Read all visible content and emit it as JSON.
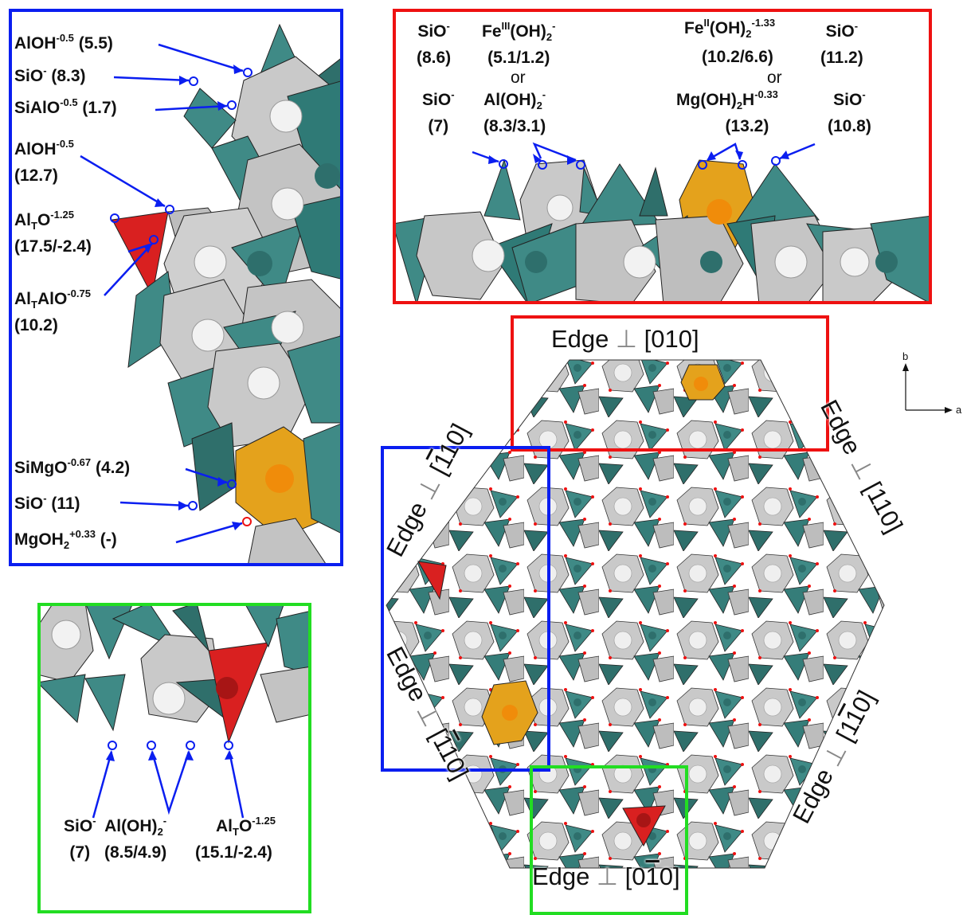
{
  "colors": {
    "blue": "#0a1ef0",
    "red": "#ee1111",
    "green": "#22dd22",
    "tetra": "#3f8a86",
    "octa": "#c7c7c7",
    "mg": "#e4a21c",
    "alt": "#d92020"
  },
  "blue_panel": {
    "labels": [
      {
        "base": "AlOH",
        "sup": "-0.5",
        "tail": " (5.5)"
      },
      {
        "base": "SiO",
        "sup": "-",
        "tail": " (8.3)"
      },
      {
        "base": "SiAlO",
        "sup": "-0.5",
        "tail": " (1.7)"
      },
      {
        "base": "AlOH",
        "sup": "-0.5",
        "tail": "",
        "line2": "(12.7)"
      },
      {
        "pre": "Al",
        "sub": "T",
        "base": "O",
        "sup": "-1.25",
        "tail": "",
        "line2": "(17.5/-2.4)"
      },
      {
        "pre": "Al",
        "sub": "T",
        "base": "AlO",
        "sup": "-0.75",
        "tail": "",
        "line2": "(10.2)"
      },
      {
        "base": "SiMgO",
        "sup": "-0.67",
        "tail": " (4.2)"
      },
      {
        "base": "SiO",
        "sup": "-",
        "tail": " (11)"
      },
      {
        "base": "MgOH",
        "sub2": "2",
        "sup": "+0.33",
        "tail": " (-)"
      }
    ]
  },
  "red_panel": {
    "labels": [
      {
        "base": "SiO",
        "sup": "-",
        "line2": "(8.6)"
      },
      {
        "base": "Fe",
        "sup": "III",
        "mid": "(OH)",
        "sub": "2",
        "sup2": "-",
        "line2": "(5.1/1.2)"
      },
      {
        "text": "or"
      },
      {
        "base": "SiO",
        "sup": "-",
        "line2": "(7)"
      },
      {
        "base": "Al(OH)",
        "sub": "2",
        "sup": "-",
        "line2": "(8.3/3.1)"
      },
      {
        "base": "Fe",
        "sup": "II",
        "mid": "(OH)",
        "sub": "2",
        "sup2": "-1.33"
      },
      {
        "base": "SiO",
        "sup": "-",
        "line2": "(11.2)"
      },
      {
        "line2": "(10.2/6.6)"
      },
      {
        "text": "or"
      },
      {
        "base": "Mg(OH)",
        "sub": "2",
        "mid": "H",
        "sup": "-0.33",
        "line2": "(13.2)"
      },
      {
        "base": "SiO",
        "sup": "-",
        "line2": "(10.8)"
      }
    ]
  },
  "green_panel": {
    "labels": [
      {
        "base": "SiO",
        "sup": "-",
        "line2": "(7)"
      },
      {
        "base": "Al(OH)",
        "sub": "2",
        "sup": "-",
        "line2": "(8.5/4.9)"
      },
      {
        "pre": "Al",
        "sub": "T",
        "base": "O",
        "sup": "-1.25",
        "line2": "(15.1/-2.4)"
      }
    ]
  },
  "edges": {
    "top": {
      "word": "Edge",
      "perp": "⊥",
      "open": "[",
      "idx": "010",
      "close": "]"
    },
    "top_right": {
      "word": "Edge",
      "perp": "⊥",
      "open": "[",
      "idx_a": "1",
      "idx_bar": "",
      "idx_b": "10",
      "close": "]"
    },
    "top_left": {
      "word": "Edge",
      "perp": "⊥",
      "open": "[",
      "bar": "1",
      "rest": "10",
      "close": "]"
    },
    "bottom_left": {
      "word": "Edge",
      "perp": "⊥",
      "open": "[",
      "bar": "1",
      "mid": "1",
      "bar2": "0",
      "close": "]"
    },
    "bottom_right": {
      "word": "Edge",
      "perp": "⊥",
      "open": "[",
      "a": "1",
      "bar": "1",
      "b": "0",
      "close": "]"
    },
    "bottom": {
      "word": "Edge",
      "perp": "⊥",
      "open": "[",
      "a": "0",
      "bar": "1",
      "b": "0",
      "close": "]"
    }
  },
  "axes": {
    "b": "b",
    "a": "a"
  }
}
